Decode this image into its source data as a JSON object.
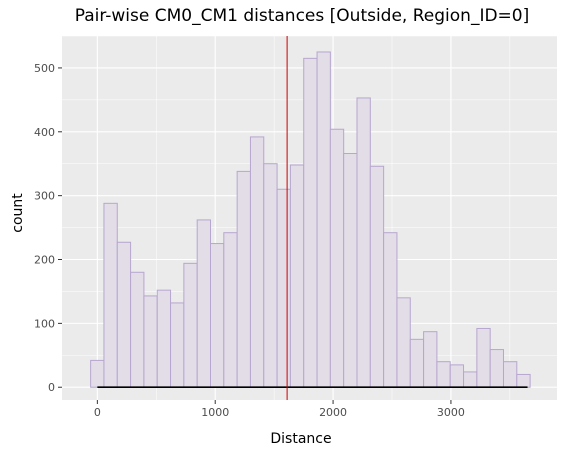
{
  "chart_data": {
    "type": "bar",
    "title": "Pair-wise CM0_CM1 distances [Outside, Region_ID=0]",
    "xlabel": "Distance",
    "ylabel": "count",
    "xlim": [
      -300,
      3900
    ],
    "ylim": [
      -20,
      550
    ],
    "xticks": [
      0,
      1000,
      2000,
      3000
    ],
    "yticks": [
      0,
      100,
      200,
      300,
      400,
      500
    ],
    "grid": true,
    "bin_width": 113,
    "bins": [
      {
        "x0": -57,
        "count": 42
      },
      {
        "x0": 56,
        "count": 288
      },
      {
        "x0": 169,
        "count": 227
      },
      {
        "x0": 282,
        "count": 180
      },
      {
        "x0": 395,
        "count": 143
      },
      {
        "x0": 508,
        "count": 152
      },
      {
        "x0": 621,
        "count": 132
      },
      {
        "x0": 734,
        "count": 194
      },
      {
        "x0": 847,
        "count": 262
      },
      {
        "x0": 960,
        "count": 225
      },
      {
        "x0": 1073,
        "count": 242
      },
      {
        "x0": 1186,
        "count": 338
      },
      {
        "x0": 1299,
        "count": 392
      },
      {
        "x0": 1412,
        "count": 350
      },
      {
        "x0": 1525,
        "count": 310
      },
      {
        "x0": 1638,
        "count": 348
      },
      {
        "x0": 1751,
        "count": 515
      },
      {
        "x0": 1864,
        "count": 525
      },
      {
        "x0": 1977,
        "count": 404
      },
      {
        "x0": 2090,
        "count": 366
      },
      {
        "x0": 2203,
        "count": 453
      },
      {
        "x0": 2316,
        "count": 346
      },
      {
        "x0": 2429,
        "count": 242
      },
      {
        "x0": 2542,
        "count": 140
      },
      {
        "x0": 2655,
        "count": 75
      },
      {
        "x0": 2768,
        "count": 87
      },
      {
        "x0": 2881,
        "count": 40
      },
      {
        "x0": 2994,
        "count": 35
      },
      {
        "x0": 3107,
        "count": 24
      },
      {
        "x0": 3220,
        "count": 92
      },
      {
        "x0": 3333,
        "count": 59
      },
      {
        "x0": 3446,
        "count": 40
      },
      {
        "x0": 3559,
        "count": 20
      }
    ],
    "vline": {
      "x": 1610,
      "color": "#cc0000"
    },
    "baseline_segment": {
      "x_start": 0,
      "x_end": 3650,
      "y": 0,
      "color": "#000000"
    },
    "colors": {
      "panel_bg": "#ebebeb",
      "grid_major": "#ffffff",
      "bar_fill": "#e2dde6",
      "bar_stroke": "#b7a6cf"
    }
  }
}
